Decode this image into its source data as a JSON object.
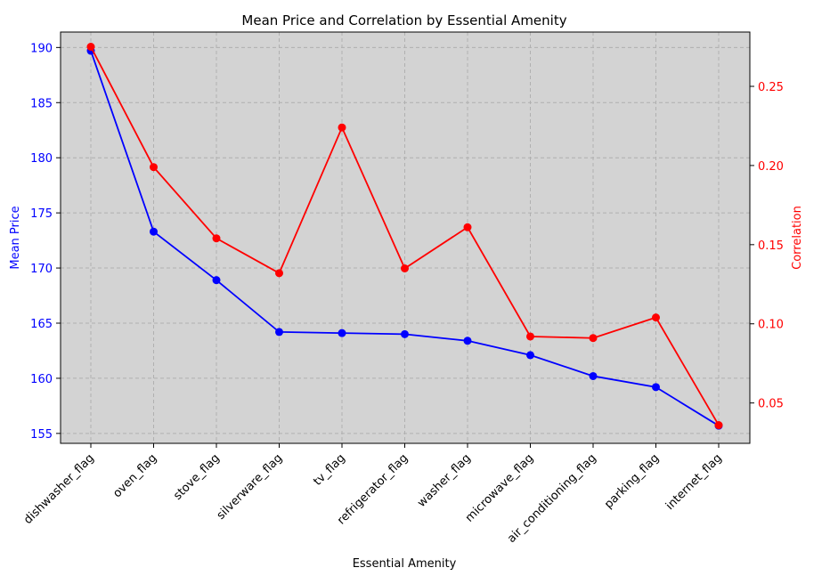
{
  "chart_data": {
    "type": "line",
    "title": "Mean Price and Correlation by Essential Amenity",
    "xlabel": "Essential Amenity",
    "ylabel_left": "Mean Price",
    "ylabel_right": "Correlation",
    "categories": [
      "dishwasher_flag",
      "oven_flag",
      "stove_flag",
      "silverware_flag",
      "tv_flag",
      "refrigerator_flag",
      "washer_flag",
      "microwave_flag",
      "air_conditioning_flag",
      "parking_flag",
      "internet_flag"
    ],
    "left_axis": {
      "ylim": [
        154.1,
        191.4
      ],
      "ticks": [
        155,
        160,
        165,
        170,
        175,
        180,
        185,
        190
      ]
    },
    "right_axis": {
      "ylim": [
        0.0245,
        0.2843
      ],
      "ticks": [
        0.05,
        0.1,
        0.15,
        0.2,
        0.25
      ],
      "tick_labels": [
        "0.05",
        "0.10",
        "0.15",
        "0.20",
        "0.25"
      ]
    },
    "series": [
      {
        "axis": "left",
        "color": "#0000ff",
        "values": [
          189.7,
          173.3,
          168.9,
          164.2,
          164.1,
          164.0,
          163.4,
          162.1,
          160.2,
          159.2,
          155.7
        ]
      },
      {
        "axis": "right",
        "color": "#ff0000",
        "values": [
          0.275,
          0.199,
          0.154,
          0.132,
          0.224,
          0.135,
          0.161,
          0.092,
          0.091,
          0.104,
          0.036
        ]
      }
    ],
    "grid": true,
    "plot_background": "#d3d3d3"
  }
}
